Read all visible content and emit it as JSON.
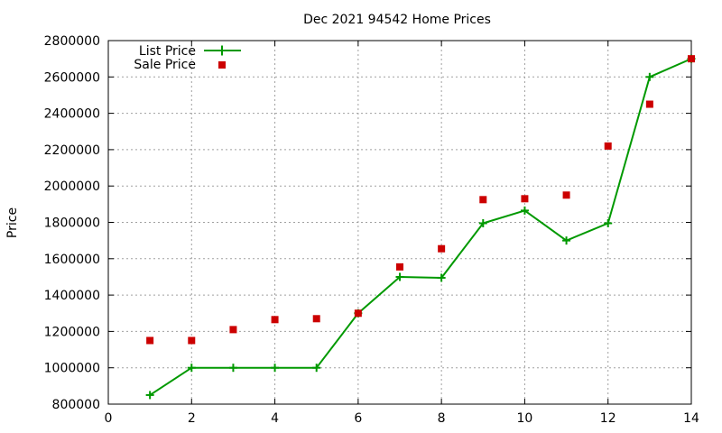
{
  "chart_data": {
    "type": "line",
    "title": "Dec 2021 94542 Home Prices",
    "xlabel": "",
    "ylabel": "Price",
    "xlim": [
      0,
      14
    ],
    "ylim": [
      800000,
      2800000
    ],
    "xticks": [
      0,
      2,
      4,
      6,
      8,
      10,
      12,
      14
    ],
    "yticks": [
      800000,
      1000000,
      1200000,
      1400000,
      1600000,
      1800000,
      2000000,
      2200000,
      2400000,
      2600000,
      2800000
    ],
    "grid": true,
    "legend_position": "top-left",
    "series": [
      {
        "name": "List Price",
        "style": "line+plus",
        "color": "#009900",
        "x": [
          1,
          2,
          3,
          4,
          5,
          6,
          7,
          8,
          9,
          10,
          11,
          12,
          13,
          14
        ],
        "values": [
          850000,
          1000000,
          1000000,
          1000000,
          1000000,
          1300000,
          1500000,
          1495000,
          1795000,
          1865000,
          1700000,
          1795000,
          2600000,
          2700000
        ]
      },
      {
        "name": "Sale Price",
        "style": "square",
        "color": "#cc0000",
        "x": [
          1,
          2,
          3,
          4,
          5,
          6,
          7,
          8,
          9,
          10,
          11,
          12,
          13,
          14
        ],
        "values": [
          1150000,
          1150000,
          1210000,
          1265000,
          1270000,
          1300000,
          1555000,
          1655000,
          1925000,
          1930000,
          1950000,
          2220000,
          2450000,
          2700000
        ]
      }
    ]
  }
}
